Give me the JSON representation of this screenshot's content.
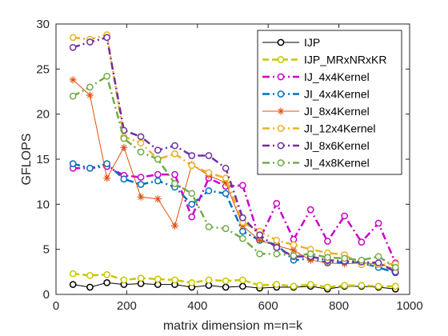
{
  "chart_data": {
    "type": "line",
    "title": "",
    "xlabel": "matrix dimension m=n=k",
    "ylabel": "GFLOPS",
    "xlim": [
      0,
      1000
    ],
    "ylim": [
      0,
      30
    ],
    "xticks": [
      0,
      200,
      400,
      600,
      800,
      1000
    ],
    "yticks": [
      0,
      5,
      10,
      15,
      20,
      25,
      30
    ],
    "grid": false,
    "legend_position": "top-right",
    "x": [
      48,
      96,
      144,
      192,
      240,
      288,
      336,
      384,
      432,
      480,
      528,
      576,
      624,
      672,
      720,
      768,
      816,
      864,
      912,
      960
    ],
    "series": [
      {
        "name": "IJP",
        "color": "#000000",
        "dash": "solid",
        "marker": "circle",
        "width": 1,
        "values": [
          1.1,
          0.8,
          1.3,
          1.1,
          1.2,
          1.1,
          1.1,
          0.8,
          1.0,
          0.8,
          0.9,
          0.7,
          0.8,
          0.8,
          0.9,
          0.6,
          0.9,
          0.9,
          0.8,
          0.6
        ]
      },
      {
        "name": "IJP_MRxNRxKR",
        "color": "#c8c800",
        "dash": "dash",
        "marker": "circle",
        "width": 2.5,
        "values": [
          2.3,
          2.1,
          2.2,
          1.6,
          1.8,
          1.7,
          1.6,
          1.3,
          1.6,
          1.5,
          1.6,
          1.0,
          1.1,
          0.9,
          1.1,
          0.8,
          1.0,
          1.0,
          0.9,
          0.9
        ]
      },
      {
        "name": "IJ_4x4Kernel",
        "color": "#cc00cc",
        "dash": "dashdot",
        "marker": "circle",
        "width": 2.5,
        "values": [
          14.0,
          14.0,
          14.2,
          13.2,
          13.0,
          13.3,
          13.3,
          8.6,
          12.9,
          12.0,
          12.1,
          6.1,
          10.1,
          6.1,
          9.4,
          5.9,
          8.7,
          5.8,
          7.9,
          3.5
        ]
      },
      {
        "name": "JI_4x4Kernel",
        "color": "#0070c0",
        "dash": "dashdot",
        "marker": "circle",
        "width": 2.5,
        "values": [
          14.5,
          14.0,
          14.5,
          12.8,
          12.2,
          12.6,
          11.9,
          10.0,
          11.5,
          11.2,
          7.0,
          6.0,
          5.5,
          3.8,
          4.0,
          3.5,
          3.6,
          3.5,
          3.0,
          2.4
        ]
      },
      {
        "name": "JI_8x4Kernel",
        "color": "#e05010",
        "dash": "solid",
        "marker": "star",
        "width": 1,
        "values": [
          23.8,
          22.1,
          12.9,
          16.3,
          10.8,
          10.6,
          7.6,
          14.4,
          13.2,
          12.4,
          7.6,
          6.0,
          5.4,
          4.9,
          3.8,
          3.5,
          3.4,
          3.5,
          3.4,
          2.8
        ]
      },
      {
        "name": "JI_12x4Kernel",
        "color": "#edb120",
        "dash": "dashdot",
        "marker": "circle",
        "width": 2.5,
        "values": [
          28.5,
          28.3,
          28.8,
          17.5,
          16.8,
          15.0,
          15.6,
          14.3,
          13.5,
          12.9,
          8.0,
          7.0,
          6.0,
          5.5,
          5.0,
          4.6,
          4.4,
          3.3,
          3.3,
          3.4
        ]
      },
      {
        "name": "JI_8x6Kernel",
        "color": "#7030a0",
        "dash": "dashdot",
        "marker": "circle",
        "width": 2.5,
        "values": [
          27.4,
          28.0,
          28.5,
          18.2,
          17.5,
          16.0,
          16.5,
          15.4,
          15.4,
          14.0,
          8.5,
          6.6,
          5.2,
          4.2,
          4.2,
          3.8,
          3.7,
          3.6,
          3.5,
          2.5
        ]
      },
      {
        "name": "JI_4x8Kernel",
        "color": "#70ad47",
        "dash": "dashdot",
        "marker": "circle",
        "width": 2.5,
        "values": [
          22.0,
          23.0,
          24.2,
          17.3,
          15.8,
          15.0,
          12.3,
          11.2,
          7.5,
          7.3,
          6.2,
          4.5,
          4.5,
          4.3,
          4.5,
          4.1,
          4.0,
          3.8,
          4.2,
          3.0
        ]
      }
    ]
  }
}
